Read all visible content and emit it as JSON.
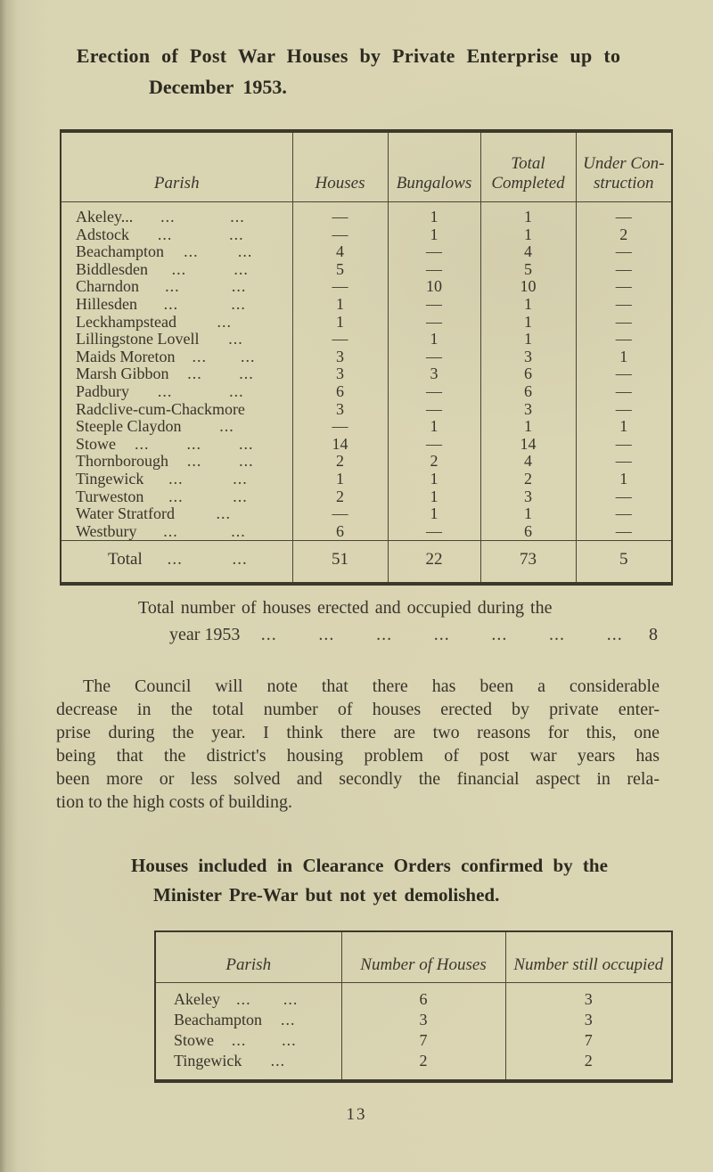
{
  "page": {
    "title_line1": "Erection of Post War Houses by Private Enterprise up to",
    "title_line2": "December 1953.",
    "page_number": "13"
  },
  "table1": {
    "headers": [
      "Parish",
      "Houses",
      "Bungalows",
      "Total\nCompleted",
      "Under Con-\nstruction"
    ],
    "leader_text": "...",
    "rows": [
      {
        "parish": "Akeley...",
        "leader_groups": 2,
        "houses": "—",
        "bungalows": "1",
        "total_completed": "1",
        "under_construction": "—"
      },
      {
        "parish": "Adstock",
        "leader_groups": 2,
        "houses": "—",
        "bungalows": "1",
        "total_completed": "1",
        "under_construction": "2"
      },
      {
        "parish": "Beachampton",
        "leader_groups": 2,
        "houses": "4",
        "bungalows": "—",
        "total_completed": "4",
        "under_construction": "—"
      },
      {
        "parish": "Biddlesden",
        "leader_groups": 2,
        "houses": "5",
        "bungalows": "—",
        "total_completed": "5",
        "under_construction": "—"
      },
      {
        "parish": "Charndon",
        "leader_groups": 2,
        "houses": "—",
        "bungalows": "10",
        "total_completed": "10",
        "under_construction": "—"
      },
      {
        "parish": "Hillesden",
        "leader_groups": 2,
        "houses": "1",
        "bungalows": "—",
        "total_completed": "1",
        "under_construction": "—"
      },
      {
        "parish": "Leckhampstead",
        "leader_groups": 1,
        "houses": "1",
        "bungalows": "—",
        "total_completed": "1",
        "under_construction": "—"
      },
      {
        "parish": "Lillingstone Lovell",
        "leader_groups": 1,
        "houses": "—",
        "bungalows": "1",
        "total_completed": "1",
        "under_construction": "—"
      },
      {
        "parish": "Maids Moreton",
        "leader_groups": 2,
        "houses": "3",
        "bungalows": "—",
        "total_completed": "3",
        "under_construction": "1"
      },
      {
        "parish": "Marsh Gibbon",
        "leader_groups": 2,
        "houses": "3",
        "bungalows": "3",
        "total_completed": "6",
        "under_construction": "—"
      },
      {
        "parish": "Padbury",
        "leader_groups": 2,
        "houses": "6",
        "bungalows": "—",
        "total_completed": "6",
        "under_construction": "—"
      },
      {
        "parish": "Radclive-cum-Chackmore",
        "leader_groups": 0,
        "houses": "3",
        "bungalows": "—",
        "total_completed": "3",
        "under_construction": "—"
      },
      {
        "parish": "Steeple Claydon",
        "leader_groups": 1,
        "houses": "—",
        "bungalows": "1",
        "total_completed": "1",
        "under_construction": "1"
      },
      {
        "parish": "Stowe",
        "leader_groups": 3,
        "houses": "14",
        "bungalows": "—",
        "total_completed": "14",
        "under_construction": "—"
      },
      {
        "parish": "Thornborough",
        "leader_groups": 2,
        "houses": "2",
        "bungalows": "2",
        "total_completed": "4",
        "under_construction": "—"
      },
      {
        "parish": "Tingewick",
        "leader_groups": 2,
        "houses": "1",
        "bungalows": "1",
        "total_completed": "2",
        "under_construction": "1"
      },
      {
        "parish": "Turweston",
        "leader_groups": 2,
        "houses": "2",
        "bungalows": "1",
        "total_completed": "3",
        "under_construction": "—"
      },
      {
        "parish": "Water Stratford",
        "leader_groups": 1,
        "houses": "—",
        "bungalows": "1",
        "total_completed": "1",
        "under_construction": "—"
      },
      {
        "parish": "Westbury",
        "leader_groups": 2,
        "houses": "6",
        "bungalows": "—",
        "total_completed": "6",
        "under_construction": "—"
      }
    ],
    "total_row": {
      "parish": "Total",
      "leader_groups": 2,
      "houses": "51",
      "bungalows": "22",
      "total_completed": "73",
      "under_construction": "5"
    }
  },
  "summary": {
    "line1": "Total number of houses erected and occupied during the",
    "line2_label": "year 1953",
    "leader_groups": 7,
    "leader_text": "...",
    "value": "8"
  },
  "paragraph": {
    "lines": [
      "The Council will note that there has been a considerable",
      "decrease in the total number of houses erected by private enter-",
      "prise during the year. I think there are two reasons for this, one",
      "being that the district's housing problem of post war years has",
      "been more or less solved and secondly the financial aspect in rela-",
      "tion to the high costs of building."
    ]
  },
  "section2": {
    "heading_line1": "Houses included in Clearance Orders confirmed by the",
    "heading_line2": "Minister Pre-War but not yet demolished."
  },
  "table2": {
    "headers": [
      "Parish",
      "Number of Houses",
      "Number still occupied"
    ],
    "leader_text": "...",
    "rows": [
      {
        "parish": "Akeley",
        "leader_groups": 2,
        "number_of_houses": "6",
        "number_still_occupied": "3"
      },
      {
        "parish": "Beachampton",
        "leader_groups": 1,
        "number_of_houses": "3",
        "number_still_occupied": "3"
      },
      {
        "parish": "Stowe",
        "leader_groups": 2,
        "number_of_houses": "7",
        "number_still_occupied": "7"
      },
      {
        "parish": "Tingewick",
        "leader_groups": 1,
        "number_of_houses": "2",
        "number_still_occupied": "2"
      }
    ]
  }
}
